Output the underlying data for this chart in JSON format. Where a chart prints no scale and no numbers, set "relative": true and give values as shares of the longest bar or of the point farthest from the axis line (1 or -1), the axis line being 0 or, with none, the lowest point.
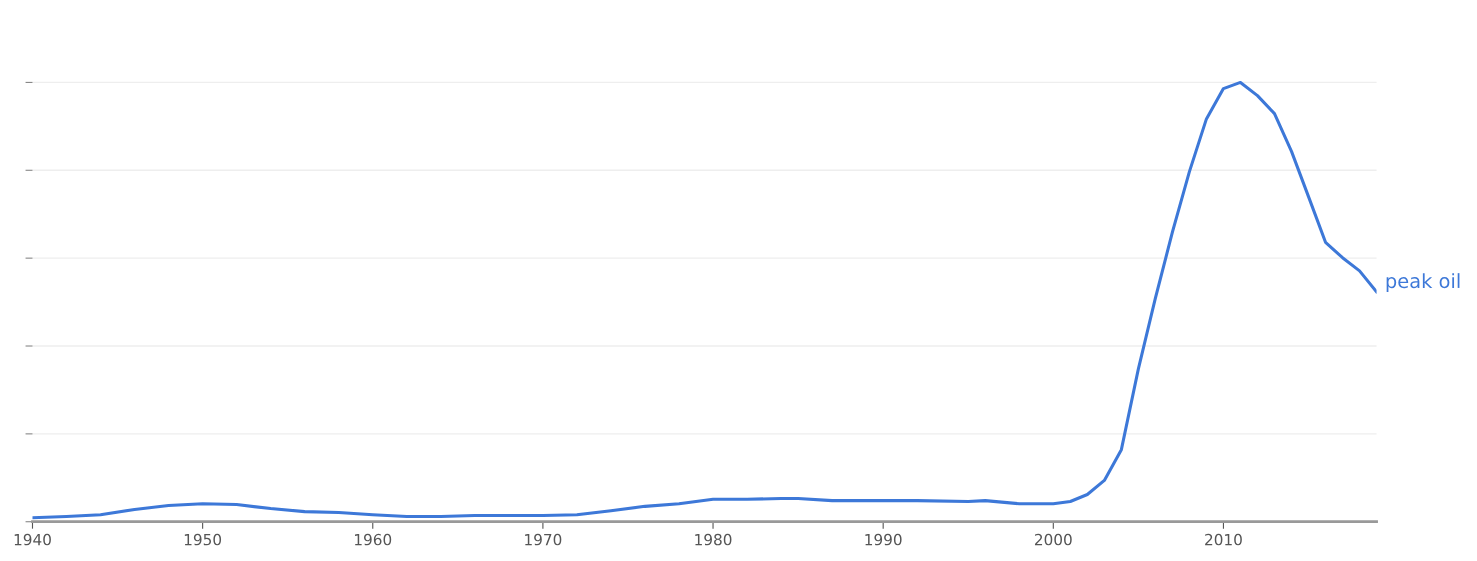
{
  "chart_data": {
    "type": "line",
    "relative": true,
    "tick_labels": "x",
    "grid": "y",
    "line_style": "solid",
    "x": [
      1940,
      1942,
      1944,
      1946,
      1948,
      1950,
      1952,
      1954,
      1956,
      1958,
      1960,
      1962,
      1964,
      1966,
      1968,
      1970,
      1972,
      1974,
      1976,
      1978,
      1980,
      1982,
      1984,
      1985,
      1987,
      1990,
      1992,
      1995,
      1996,
      1998,
      2000,
      2001,
      2002,
      2003,
      2004,
      2005,
      2006,
      2007,
      2008,
      2009,
      2010,
      2011,
      2012,
      2013,
      2014,
      2015,
      2016,
      2017,
      2018,
      2019
    ],
    "xlim": [
      1940,
      2019
    ],
    "xticks": [
      1940,
      1950,
      1960,
      1970,
      1980,
      1990,
      2000,
      2010
    ],
    "series": [
      {
        "name": "peak oil",
        "color": "#3d78d8",
        "values": [
          0.009,
          0.012,
          0.016,
          0.028,
          0.037,
          0.041,
          0.039,
          0.03,
          0.023,
          0.021,
          0.016,
          0.012,
          0.012,
          0.014,
          0.014,
          0.014,
          0.016,
          0.025,
          0.035,
          0.041,
          0.051,
          0.051,
          0.053,
          0.053,
          0.048,
          0.048,
          0.048,
          0.046,
          0.048,
          0.041,
          0.041,
          0.046,
          0.062,
          0.094,
          0.164,
          0.348,
          0.509,
          0.659,
          0.797,
          0.917,
          0.986,
          1,
          0.97,
          0.929,
          0.843,
          0.74,
          0.636,
          0.601,
          0.571,
          0.523
        ]
      }
    ]
  }
}
